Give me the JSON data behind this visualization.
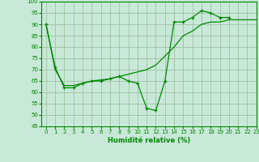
{
  "x": [
    0,
    1,
    2,
    3,
    4,
    5,
    6,
    7,
    8,
    9,
    10,
    11,
    12,
    13,
    14,
    15,
    16,
    17,
    18,
    19,
    20,
    21,
    22,
    23
  ],
  "line1_y": [
    90,
    71,
    62,
    62,
    64,
    65,
    65,
    66,
    67,
    65,
    64,
    53,
    52,
    65,
    91,
    91,
    93,
    96,
    95,
    93,
    93,
    null,
    null,
    null
  ],
  "line2_y": [
    null,
    null,
    null,
    null,
    null,
    null,
    null,
    null,
    null,
    null,
    null,
    null,
    null,
    null,
    null,
    null,
    null,
    null,
    null,
    null,
    null,
    null,
    null,
    null
  ],
  "line_smooth_x": [
    0,
    1,
    2,
    3,
    4,
    5,
    6,
    7,
    8,
    9,
    10,
    11,
    12,
    13,
    14,
    15,
    16,
    17,
    18,
    19,
    20,
    21,
    22,
    23
  ],
  "line_smooth_y": [
    90,
    70,
    63,
    63,
    64,
    65,
    65.5,
    66,
    67,
    68,
    69,
    70,
    72,
    76,
    80,
    85,
    87,
    90,
    91,
    91,
    92,
    92,
    92,
    92
  ],
  "line_color": "#008800",
  "bg_color": "#c8e8d8",
  "grid_color": "#99bb99",
  "xlabel": "Humidité relative (%)",
  "ylim": [
    45,
    100
  ],
  "xlim": [
    -0.5,
    23
  ],
  "yticks": [
    45,
    50,
    55,
    60,
    65,
    70,
    75,
    80,
    85,
    90,
    95,
    100
  ],
  "xticks": [
    0,
    1,
    2,
    3,
    4,
    5,
    6,
    7,
    8,
    9,
    10,
    11,
    12,
    13,
    14,
    15,
    16,
    17,
    18,
    19,
    20,
    21,
    22,
    23
  ]
}
